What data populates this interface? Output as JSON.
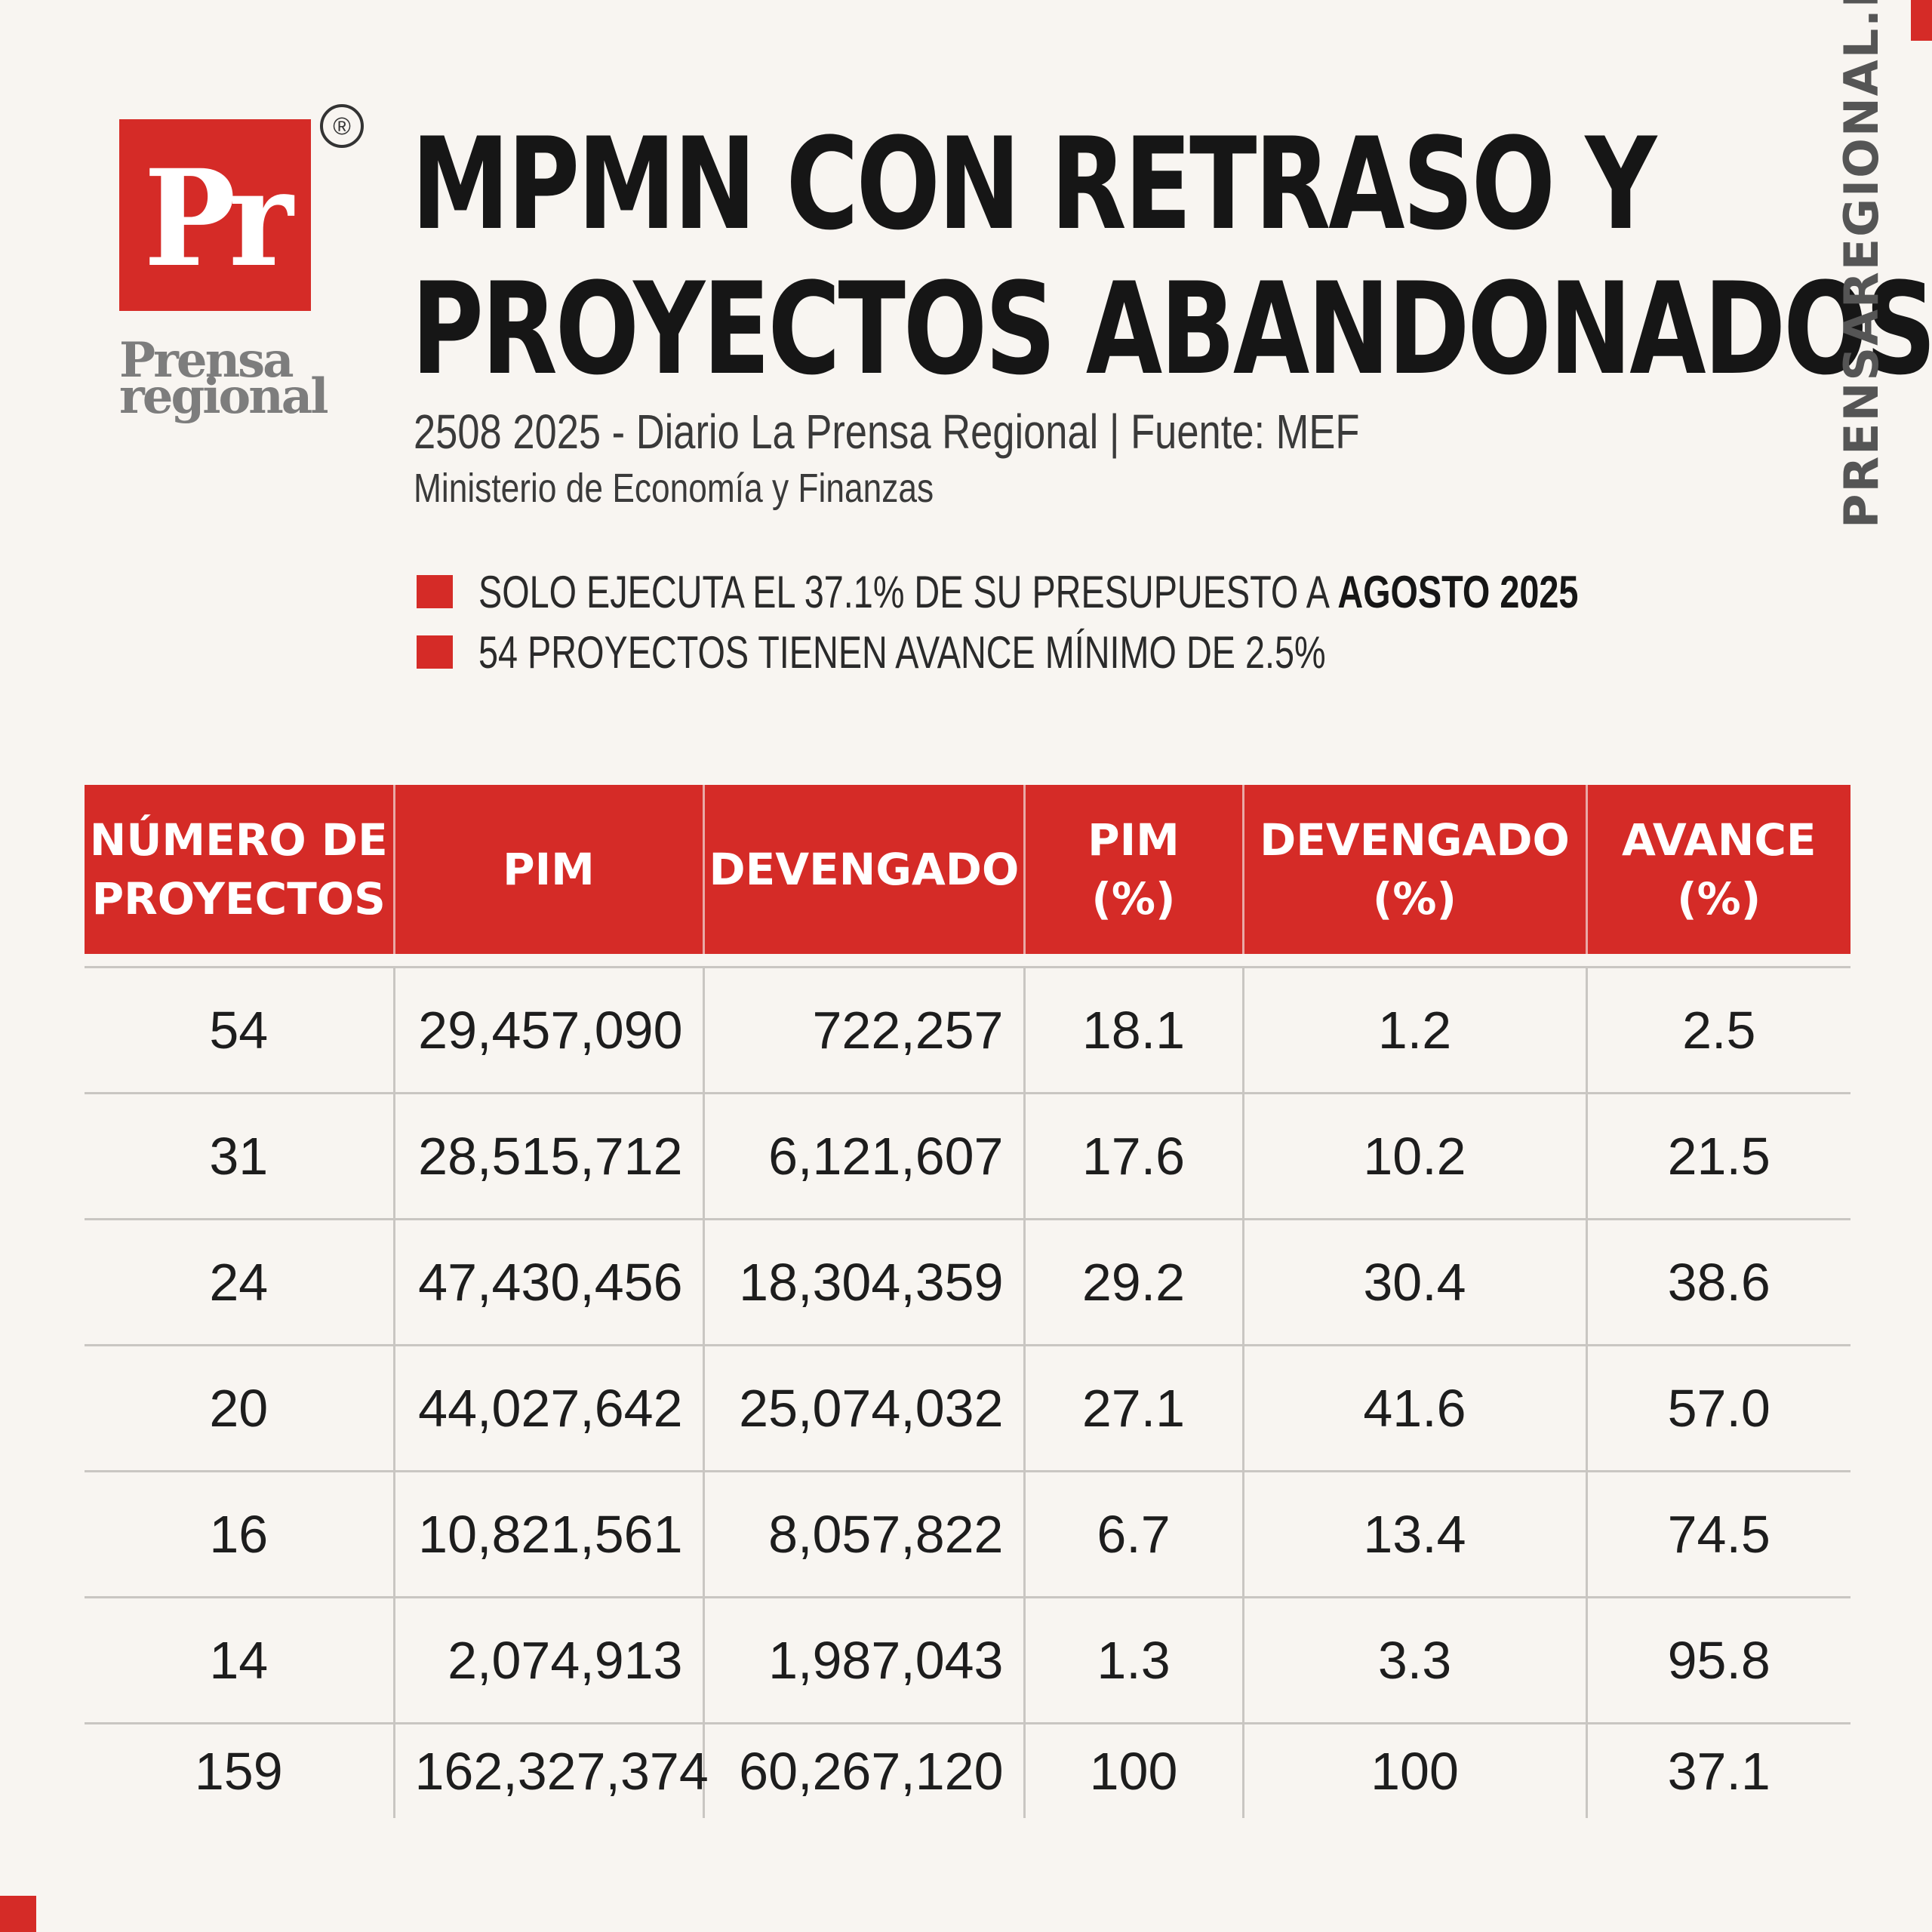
{
  "brand": {
    "logo_mark": "Pr",
    "registered": "®",
    "wordmark_line1": "Prensa",
    "wordmark_line2": "regional",
    "site_url": "PRENSAREGIONAL.PE",
    "accent_color": "#d52b27"
  },
  "headline": {
    "line1": "MPMN CON RETRASO Y",
    "line2": "PROYECTOS ABANDONADOS"
  },
  "source": {
    "line1": "2508 2025 - Diario La Prensa Regional | Fuente: MEF",
    "line2": "Ministerio de Economía y Finanzas"
  },
  "bullets": {
    "b1_text": "SOLO EJECUTA EL 37.1% DE SU PRESUPUESTO A ",
    "b1_bold": "AGOSTO 2025",
    "b2_text": "54 PROYECTOS TIENEN AVANCE MÍNIMO DE 2.5%"
  },
  "table": {
    "headers": [
      {
        "l1": "NÚMERO DE",
        "l2": "PROYECTOS"
      },
      {
        "l1": "PIM",
        "l2": ""
      },
      {
        "l1": "DEVENGADO",
        "l2": ""
      },
      {
        "l1": "PIM",
        "l2": "(%)"
      },
      {
        "l1": "DEVENGADO",
        "l2": "(%)"
      },
      {
        "l1": "AVANCE",
        "l2": "(%)"
      }
    ],
    "rows": [
      [
        "54",
        "29,457,090",
        "722,257",
        "18.1",
        "1.2",
        "2.5"
      ],
      [
        "31",
        "28,515,712",
        "6,121,607",
        "17.6",
        "10.2",
        "21.5"
      ],
      [
        "24",
        "47,430,456",
        "18,304,359",
        "29.2",
        "30.4",
        "38.6"
      ],
      [
        "20",
        "44,027,642",
        "25,074,032",
        "27.1",
        "41.6",
        "57.0"
      ],
      [
        "16",
        "10,821,561",
        "8,057,822",
        "6.7",
        "13.4",
        "74.5"
      ],
      [
        "14",
        "2,074,913",
        "1,987,043",
        "1.3",
        "3.3",
        "95.8"
      ],
      [
        "159",
        "162,327,374",
        "60,267,120",
        "100",
        "100",
        "37.1"
      ]
    ]
  }
}
